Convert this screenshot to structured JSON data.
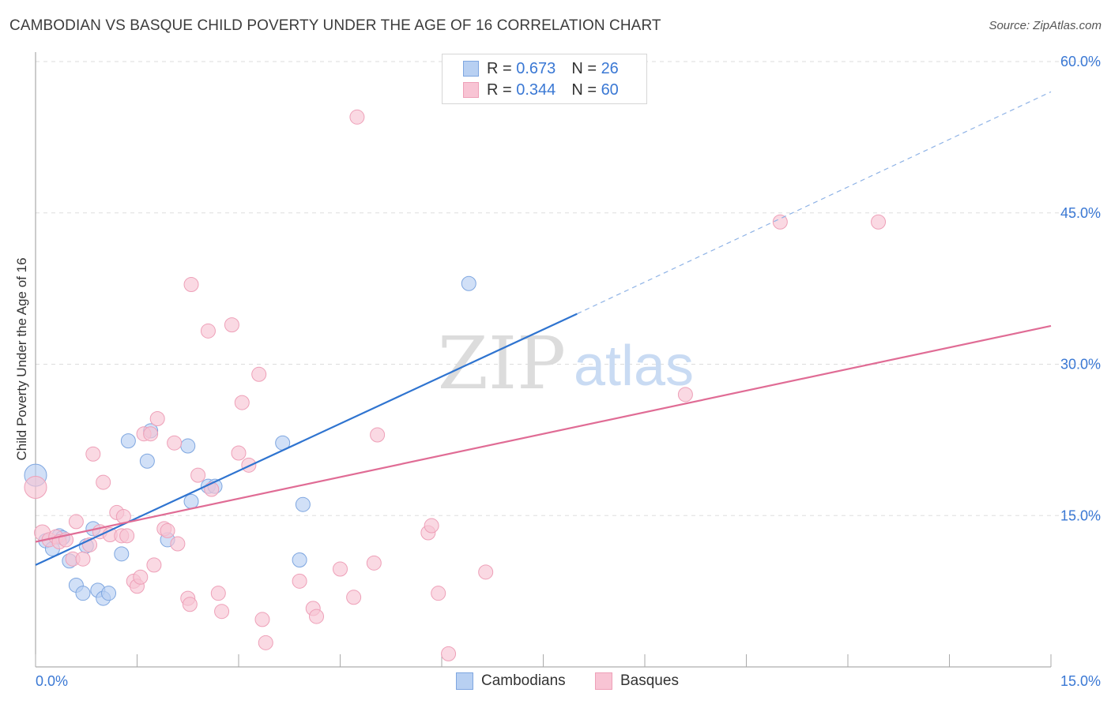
{
  "title": "CAMBODIAN VS BASQUE CHILD POVERTY UNDER THE AGE OF 16 CORRELATION CHART",
  "source": "Source: ZipAtlas.com",
  "watermark": {
    "zip": "ZIP",
    "atlas": "atlas"
  },
  "legend": {
    "rows": [
      {
        "r_label": "R =",
        "r_value": "0.673",
        "n_label": "N =",
        "n_value": "26"
      },
      {
        "r_label": "R =",
        "r_value": "0.344",
        "n_label": "N =",
        "n_value": "60"
      }
    ]
  },
  "bottom_legend": {
    "cambodians": "Cambodians",
    "basques": "Basques"
  },
  "colors": {
    "cambodians_fill": "#b8d0f2",
    "cambodians_stroke": "#7ea6e0",
    "cambodians_line": "#2f74d0",
    "basques_fill": "#f8c4d4",
    "basques_stroke": "#eea0b8",
    "basques_line": "#e06c95",
    "tick_label": "#3a78d4",
    "grid": "#dddddd"
  },
  "chart_data": {
    "type": "scatter",
    "title": "CAMBODIAN VS BASQUE CHILD POVERTY UNDER THE AGE OF 16 CORRELATION CHART",
    "xlabel": "",
    "ylabel": "Child Poverty Under the Age of 16",
    "xlim": [
      0,
      15
    ],
    "ylim": [
      0,
      60
    ],
    "x_tick_labels": [
      "0.0%",
      "15.0%"
    ],
    "y_ticks": [
      15,
      30,
      45,
      60
    ],
    "y_tick_labels": [
      "15.0%",
      "30.0%",
      "45.0%",
      "60.0%"
    ],
    "grid": true,
    "legend_placement": "top-center",
    "series": [
      {
        "name": "Cambodians",
        "r": 0.673,
        "n": 26,
        "trend": {
          "x0": 0,
          "y0": 10.1,
          "x1": 8.0,
          "y1": 35.0,
          "dashed_to_x": 15,
          "dashed_to_y": 57.0
        },
        "points": [
          [
            0.0,
            19.0,
            14
          ],
          [
            0.15,
            12.5,
            9
          ],
          [
            0.25,
            11.7,
            9
          ],
          [
            0.35,
            13.0,
            9
          ],
          [
            0.4,
            12.8,
            9
          ],
          [
            0.5,
            10.5,
            9
          ],
          [
            0.6,
            8.1,
            9
          ],
          [
            0.7,
            7.3,
            9
          ],
          [
            0.75,
            12.0,
            9
          ],
          [
            0.85,
            13.7,
            9
          ],
          [
            0.92,
            7.6,
            9
          ],
          [
            1.0,
            6.8,
            9
          ],
          [
            1.08,
            7.3,
            9
          ],
          [
            1.27,
            11.2,
            9
          ],
          [
            1.37,
            22.4,
            9
          ],
          [
            1.65,
            20.4,
            9
          ],
          [
            1.7,
            23.4,
            9
          ],
          [
            1.95,
            12.6,
            9
          ],
          [
            2.25,
            21.9,
            9
          ],
          [
            2.3,
            16.4,
            9
          ],
          [
            2.55,
            17.9,
            9
          ],
          [
            2.65,
            17.9,
            9
          ],
          [
            3.65,
            22.2,
            9
          ],
          [
            3.9,
            10.6,
            9
          ],
          [
            3.95,
            16.1,
            9
          ],
          [
            6.4,
            38.0,
            9
          ]
        ]
      },
      {
        "name": "Basques",
        "r": 0.344,
        "n": 60,
        "trend": {
          "x0": 0,
          "y0": 12.4,
          "x1": 15,
          "y1": 33.8
        },
        "points": [
          [
            0.0,
            17.8,
            14
          ],
          [
            0.1,
            13.3,
            10
          ],
          [
            0.2,
            12.6,
            9
          ],
          [
            0.3,
            12.9,
            9
          ],
          [
            0.35,
            12.4,
            9
          ],
          [
            0.45,
            12.6,
            9
          ],
          [
            0.55,
            10.7,
            9
          ],
          [
            0.6,
            14.4,
            9
          ],
          [
            0.7,
            10.7,
            9
          ],
          [
            0.8,
            12.1,
            9
          ],
          [
            0.85,
            21.1,
            9
          ],
          [
            0.95,
            13.4,
            9
          ],
          [
            1.0,
            18.3,
            9
          ],
          [
            1.1,
            13.1,
            9
          ],
          [
            1.2,
            15.3,
            9
          ],
          [
            1.27,
            13.0,
            9
          ],
          [
            1.3,
            14.9,
            9
          ],
          [
            1.35,
            13.0,
            9
          ],
          [
            1.45,
            8.5,
            9
          ],
          [
            1.5,
            8.0,
            9
          ],
          [
            1.55,
            8.9,
            9
          ],
          [
            1.6,
            23.1,
            9
          ],
          [
            1.7,
            23.1,
            9
          ],
          [
            1.75,
            10.1,
            9
          ],
          [
            1.8,
            24.6,
            9
          ],
          [
            1.9,
            13.7,
            9
          ],
          [
            1.95,
            13.5,
            9
          ],
          [
            2.05,
            22.2,
            9
          ],
          [
            2.1,
            12.2,
            9
          ],
          [
            2.25,
            6.8,
            9
          ],
          [
            2.28,
            6.2,
            9
          ],
          [
            2.3,
            37.9,
            9
          ],
          [
            2.4,
            19.0,
            9
          ],
          [
            2.55,
            33.3,
            9
          ],
          [
            2.6,
            17.6,
            9
          ],
          [
            2.7,
            7.3,
            9
          ],
          [
            2.75,
            5.5,
            9
          ],
          [
            2.9,
            33.9,
            9
          ],
          [
            3.0,
            21.2,
            9
          ],
          [
            3.05,
            26.2,
            9
          ],
          [
            3.15,
            20.0,
            9
          ],
          [
            3.3,
            29.0,
            9
          ],
          [
            3.35,
            4.7,
            9
          ],
          [
            3.4,
            2.4,
            9
          ],
          [
            3.9,
            8.5,
            9
          ],
          [
            4.1,
            5.8,
            9
          ],
          [
            4.15,
            5.0,
            9
          ],
          [
            4.5,
            9.7,
            9
          ],
          [
            4.7,
            6.9,
            9
          ],
          [
            4.75,
            54.5,
            9
          ],
          [
            5.0,
            10.3,
            9
          ],
          [
            5.05,
            23.0,
            9
          ],
          [
            5.8,
            13.3,
            9
          ],
          [
            5.85,
            14.0,
            9
          ],
          [
            5.95,
            7.3,
            9
          ],
          [
            6.1,
            1.3,
            9
          ],
          [
            6.65,
            9.4,
            9
          ],
          [
            9.6,
            27.0,
            9
          ],
          [
            11.0,
            44.1,
            9
          ],
          [
            12.45,
            44.1,
            9
          ]
        ]
      }
    ]
  }
}
